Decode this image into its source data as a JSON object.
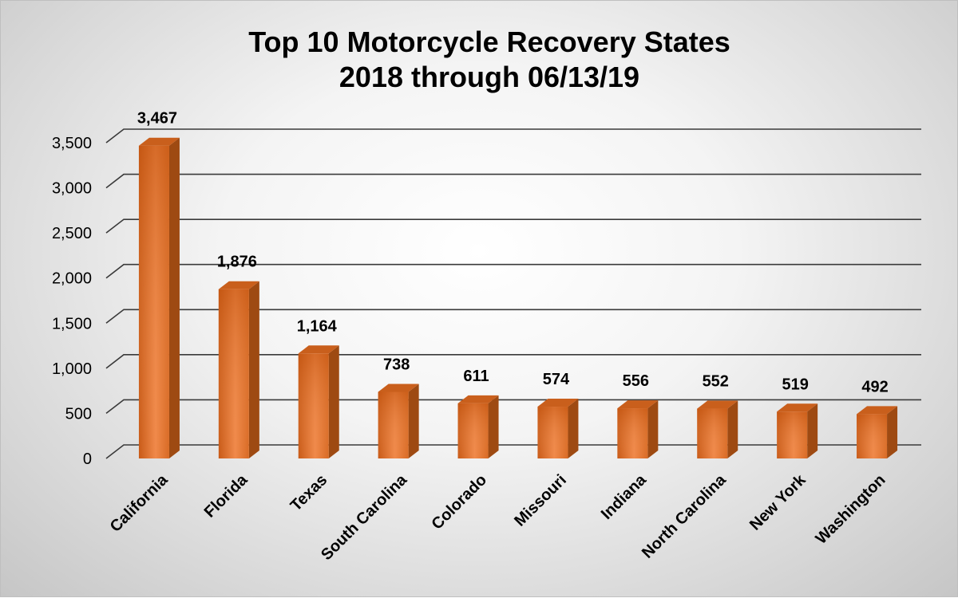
{
  "chart_data": {
    "type": "bar",
    "title": "Top 10 Motorcycle Recovery States",
    "subtitle": "2018 through 06/13/19",
    "categories": [
      "California",
      "Florida",
      "Texas",
      "South Carolina",
      "Colorado",
      "Missouri",
      "Indiana",
      "North Carolina",
      "New York",
      "Washington"
    ],
    "values": [
      3467,
      1876,
      1164,
      738,
      611,
      574,
      556,
      552,
      519,
      492
    ],
    "value_labels": [
      "3,467",
      "1,876",
      "1,164",
      "738",
      "611",
      "574",
      "556",
      "552",
      "519",
      "492"
    ],
    "y_ticks": [
      0,
      500,
      1000,
      1500,
      2000,
      2500,
      3000,
      3500
    ],
    "y_tick_labels": [
      "0",
      "500",
      "1,000",
      "1,500",
      "2,000",
      "2,500",
      "3,000",
      "3,500"
    ],
    "ylim": [
      0,
      3500
    ],
    "grid": true,
    "legend": "none",
    "xlabel": "",
    "ylabel": "",
    "colors": {
      "bar_front": "#e8772e",
      "bar_side": "#9e4a12",
      "bar_top": "#c95f1c",
      "grid": "#3a3a3a"
    }
  }
}
